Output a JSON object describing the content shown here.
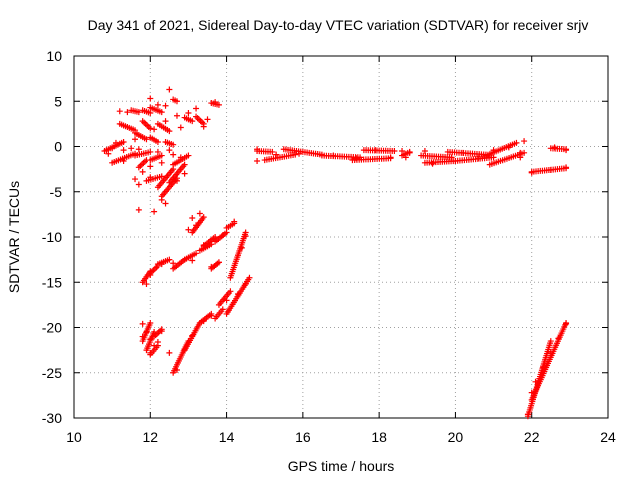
{
  "chart_data": {
    "type": "scatter",
    "title": "Day 341 of 2021, Sidereal Day-to-day VTEC variation (SDTVAR) for receiver srjv",
    "xlabel": "GPS time / hours",
    "ylabel": "SDTVAR / TECUs",
    "xlim": [
      10,
      24
    ],
    "ylim": [
      -30,
      10
    ],
    "xticks": [
      10,
      12,
      14,
      16,
      18,
      20,
      22,
      24
    ],
    "yticks": [
      10,
      5,
      0,
      -5,
      -10,
      -15,
      -20,
      -25,
      -30
    ],
    "grid": true,
    "marker": "+",
    "color": "#ff0000",
    "segments": [
      {
        "x0": 10.8,
        "y0": -0.5,
        "x1": 11.3,
        "y1": 0.5
      },
      {
        "x0": 11.0,
        "y0": -1.8,
        "x1": 11.6,
        "y1": -0.8
      },
      {
        "x0": 11.2,
        "y0": 2.5,
        "x1": 11.6,
        "y1": 1.8
      },
      {
        "x0": 11.5,
        "y0": 4.0,
        "x1": 11.7,
        "y1": 3.8
      },
      {
        "x0": 11.6,
        "y0": 1.5,
        "x1": 11.9,
        "y1": 0.8
      },
      {
        "x0": 11.6,
        "y0": -1.0,
        "x1": 12.0,
        "y1": -0.6
      },
      {
        "x0": 11.7,
        "y0": -2.3,
        "x1": 11.9,
        "y1": -1.5
      },
      {
        "x0": 11.8,
        "y0": 2.8,
        "x1": 12.0,
        "y1": 2.0
      },
      {
        "x0": 11.8,
        "y0": 4.0,
        "x1": 12.0,
        "y1": 3.7
      },
      {
        "x0": 11.9,
        "y0": -3.8,
        "x1": 12.3,
        "y1": -3.3
      },
      {
        "x0": 12.0,
        "y0": 4.3,
        "x1": 12.3,
        "y1": 3.8
      },
      {
        "x0": 12.0,
        "y0": 1.0,
        "x1": 12.2,
        "y1": 0.5
      },
      {
        "x0": 12.0,
        "y0": -1.5,
        "x1": 12.3,
        "y1": -1.0
      },
      {
        "x0": 12.2,
        "y0": 2.5,
        "x1": 12.5,
        "y1": 1.7
      },
      {
        "x0": 12.4,
        "y0": 0.5,
        "x1": 12.6,
        "y1": 0.2
      },
      {
        "x0": 12.2,
        "y0": -4.5,
        "x1": 12.6,
        "y1": -2.5
      },
      {
        "x0": 12.3,
        "y0": -5.5,
        "x1": 12.7,
        "y1": -3.5
      },
      {
        "x0": 12.5,
        "y0": -4.0,
        "x1": 12.9,
        "y1": -2.0
      },
      {
        "x0": 12.6,
        "y0": 5.2,
        "x1": 12.7,
        "y1": 5.0
      },
      {
        "x0": 12.6,
        "y0": -2.0,
        "x1": 13.0,
        "y1": -1.0
      },
      {
        "x0": 12.9,
        "y0": 3.2,
        "x1": 13.1,
        "y1": 2.8
      },
      {
        "x0": 13.2,
        "y0": 3.3,
        "x1": 13.4,
        "y1": 2.5
      },
      {
        "x0": 13.6,
        "y0": 4.8,
        "x1": 13.8,
        "y1": 4.6
      },
      {
        "x0": 11.8,
        "y0": -15.0,
        "x1": 12.0,
        "y1": -13.8
      },
      {
        "x0": 12.0,
        "y0": -14.0,
        "x1": 12.2,
        "y1": -13.2
      },
      {
        "x0": 12.2,
        "y0": -13.0,
        "x1": 12.5,
        "y1": -12.5
      },
      {
        "x0": 12.6,
        "y0": -13.5,
        "x1": 12.9,
        "y1": -12.5
      },
      {
        "x0": 12.9,
        "y0": -12.5,
        "x1": 13.2,
        "y1": -11.8
      },
      {
        "x0": 13.4,
        "y0": -11.0,
        "x1": 13.7,
        "y1": -10.0
      },
      {
        "x0": 13.7,
        "y0": -10.5,
        "x1": 14.0,
        "y1": -9.5
      },
      {
        "x0": 14.0,
        "y0": -9.0,
        "x1": 14.2,
        "y1": -8.5
      },
      {
        "x0": 13.1,
        "y0": -9.5,
        "x1": 13.4,
        "y1": -7.8
      },
      {
        "x0": 13.3,
        "y0": -11.5,
        "x1": 13.6,
        "y1": -10.8
      },
      {
        "x0": 13.6,
        "y0": -13.5,
        "x1": 13.8,
        "y1": -12.8
      },
      {
        "x0": 14.1,
        "y0": -14.5,
        "x1": 14.5,
        "y1": -9.5
      },
      {
        "x0": 13.8,
        "y0": -17.5,
        "x1": 14.1,
        "y1": -16.0
      },
      {
        "x0": 14.0,
        "y0": -18.5,
        "x1": 14.6,
        "y1": -14.5
      },
      {
        "x0": 11.8,
        "y0": -21.5,
        "x1": 12.0,
        "y1": -19.5
      },
      {
        "x0": 11.9,
        "y0": -22.5,
        "x1": 12.1,
        "y1": -20.5
      },
      {
        "x0": 12.1,
        "y0": -21.0,
        "x1": 12.3,
        "y1": -20.2
      },
      {
        "x0": 12.0,
        "y0": -23.0,
        "x1": 12.2,
        "y1": -22.0
      },
      {
        "x0": 12.6,
        "y0": -25.0,
        "x1": 13.0,
        "y1": -21.5
      },
      {
        "x0": 12.9,
        "y0": -22.5,
        "x1": 13.3,
        "y1": -19.5
      },
      {
        "x0": 13.3,
        "y0": -19.5,
        "x1": 13.6,
        "y1": -18.5
      },
      {
        "x0": 13.7,
        "y0": -19.0,
        "x1": 13.9,
        "y1": -18.0
      },
      {
        "x0": 14.8,
        "y0": -0.5,
        "x1": 15.2,
        "y1": -0.6
      },
      {
        "x0": 15.0,
        "y0": -1.5,
        "x1": 15.8,
        "y1": -0.9
      },
      {
        "x0": 15.5,
        "y0": -0.3,
        "x1": 16.5,
        "y1": -0.9
      },
      {
        "x0": 16.5,
        "y0": -1.0,
        "x1": 17.5,
        "y1": -1.2
      },
      {
        "x0": 17.3,
        "y0": -1.5,
        "x1": 18.3,
        "y1": -1.3
      },
      {
        "x0": 17.6,
        "y0": -0.4,
        "x1": 18.4,
        "y1": -0.5
      },
      {
        "x0": 18.6,
        "y0": -1.0,
        "x1": 18.8,
        "y1": -0.6
      },
      {
        "x0": 19.1,
        "y0": -1.0,
        "x1": 19.9,
        "y1": -1.2
      },
      {
        "x0": 19.2,
        "y0": -1.8,
        "x1": 20.0,
        "y1": -1.6
      },
      {
        "x0": 19.8,
        "y0": -0.6,
        "x1": 20.8,
        "y1": -0.9
      },
      {
        "x0": 20.0,
        "y0": -1.6,
        "x1": 21.0,
        "y1": -1.2
      },
      {
        "x0": 20.8,
        "y0": -1.0,
        "x1": 21.6,
        "y1": 0.4
      },
      {
        "x0": 20.9,
        "y0": -2.0,
        "x1": 21.8,
        "y1": -0.7
      },
      {
        "x0": 22.0,
        "y0": -2.8,
        "x1": 22.9,
        "y1": -2.4
      },
      {
        "x0": 22.5,
        "y0": -0.2,
        "x1": 22.9,
        "y1": -0.3
      },
      {
        "x0": 21.9,
        "y0": -29.8,
        "x1": 22.5,
        "y1": -21.5
      },
      {
        "x0": 22.0,
        "y0": -28.0,
        "x1": 22.9,
        "y1": -19.5
      }
    ],
    "points": [
      [
        11.2,
        3.9
      ],
      [
        11.4,
        3.8
      ],
      [
        11.3,
        -0.4
      ],
      [
        11.5,
        -0.2
      ],
      [
        11.6,
        0.8
      ],
      [
        11.0,
        -0.2
      ],
      [
        10.9,
        -0.8
      ],
      [
        11.1,
        0.4
      ],
      [
        11.3,
        -1.6
      ],
      [
        11.7,
        -0.3
      ],
      [
        12.0,
        5.3
      ],
      [
        12.2,
        4.6
      ],
      [
        12.5,
        6.3
      ],
      [
        12.4,
        4.5
      ],
      [
        12.1,
        1.9
      ],
      [
        12.4,
        2.8
      ],
      [
        12.7,
        3.4
      ],
      [
        12.8,
        2.1
      ],
      [
        13.0,
        3.7
      ],
      [
        13.2,
        4.2
      ],
      [
        13.5,
        3.0
      ],
      [
        13.4,
        2.2
      ],
      [
        13.7,
        4.9
      ],
      [
        11.7,
        -4.2
      ],
      [
        11.6,
        -3.6
      ],
      [
        12.0,
        -3.4
      ],
      [
        12.3,
        -5.9
      ],
      [
        12.4,
        -6.3
      ],
      [
        12.1,
        -7.2
      ],
      [
        11.7,
        -7.0
      ],
      [
        12.7,
        -3.8
      ],
      [
        12.9,
        -3.0
      ],
      [
        12.3,
        -1.8
      ],
      [
        12.2,
        -0.6
      ],
      [
        12.5,
        -0.4
      ],
      [
        11.8,
        -2.8
      ],
      [
        12.0,
        -2.2
      ],
      [
        12.6,
        -0.9
      ],
      [
        12.8,
        -1.2
      ],
      [
        11.9,
        -15.2
      ],
      [
        12.0,
        -14.2
      ],
      [
        12.3,
        -13.0
      ],
      [
        12.6,
        -12.9
      ],
      [
        13.1,
        -12.6
      ],
      [
        13.1,
        -7.9
      ],
      [
        13.3,
        -7.4
      ],
      [
        13.0,
        -9.2
      ],
      [
        13.2,
        -8.7
      ],
      [
        13.4,
        -10.9
      ],
      [
        13.7,
        -10.2
      ],
      [
        13.9,
        -9.8
      ],
      [
        14.2,
        -8.3
      ],
      [
        13.6,
        -13.3
      ],
      [
        13.8,
        -12.8
      ],
      [
        14.3,
        -12.0
      ],
      [
        14.4,
        -11.2
      ],
      [
        14.5,
        -9.9
      ],
      [
        11.8,
        -19.6
      ],
      [
        11.9,
        -20.5
      ],
      [
        12.0,
        -21.3
      ],
      [
        12.1,
        -22.0
      ],
      [
        12.2,
        -21.6
      ],
      [
        12.0,
        -22.8
      ],
      [
        11.8,
        -21.0
      ],
      [
        12.3,
        -20.4
      ],
      [
        12.5,
        -22.8
      ],
      [
        12.7,
        -24.7
      ],
      [
        12.9,
        -22.4
      ],
      [
        13.1,
        -20.9
      ],
      [
        13.4,
        -19.3
      ],
      [
        13.6,
        -18.7
      ],
      [
        14.0,
        -17.0
      ],
      [
        14.3,
        -16.3
      ],
      [
        14.5,
        -15.2
      ],
      [
        14.8,
        -0.3
      ],
      [
        14.8,
        -1.6
      ],
      [
        15.3,
        -0.9
      ],
      [
        15.9,
        -0.8
      ],
      [
        16.8,
        -1.0
      ],
      [
        17.4,
        -1.3
      ],
      [
        17.9,
        -0.4
      ],
      [
        18.3,
        -1.2
      ],
      [
        18.6,
        -0.5
      ],
      [
        18.7,
        -1.2
      ],
      [
        18.8,
        -0.7
      ],
      [
        19.2,
        -0.5
      ],
      [
        19.4,
        -1.9
      ],
      [
        20.2,
        -0.7
      ],
      [
        20.6,
        -1.3
      ],
      [
        21.0,
        -0.4
      ],
      [
        21.4,
        -0.1
      ],
      [
        21.8,
        0.6
      ],
      [
        21.7,
        -0.7
      ],
      [
        21.7,
        -1.2
      ],
      [
        22.0,
        -2.9
      ],
      [
        22.5,
        -2.6
      ],
      [
        22.9,
        -2.3
      ],
      [
        22.6,
        -0.1
      ],
      [
        22.9,
        -0.4
      ],
      [
        21.9,
        -29.6
      ],
      [
        22.0,
        -27.2
      ],
      [
        22.1,
        -26.0
      ],
      [
        22.3,
        -24.4
      ],
      [
        22.5,
        -22.8
      ],
      [
        22.7,
        -21.2
      ],
      [
        22.9,
        -19.6
      ]
    ]
  }
}
